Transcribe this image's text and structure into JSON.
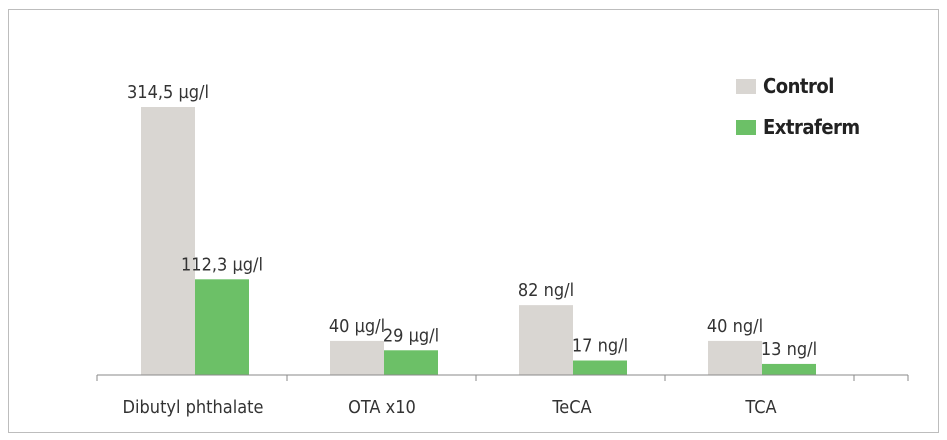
{
  "chart_data": {
    "type": "bar",
    "categories": [
      "Dibutyl phthalate",
      "OTA x10",
      "TeCA",
      "TCA"
    ],
    "series": [
      {
        "name": "Control",
        "color": "#d9d6d2",
        "values": [
          314.5,
          40,
          82,
          40
        ],
        "labels": [
          "314,5 µg/l",
          "40 µg/l",
          "82 ng/l",
          "40 ng/l"
        ]
      },
      {
        "name": "Extraferm",
        "color": "#6cc067",
        "values": [
          112.3,
          29,
          17,
          13
        ],
        "labels": [
          "112,3 µg/l",
          "29 µg/l",
          "17 ng/l",
          "13 ng/l"
        ]
      }
    ],
    "ylim": [
      0,
      340
    ],
    "grid": false,
    "legend_position": "top-right"
  }
}
